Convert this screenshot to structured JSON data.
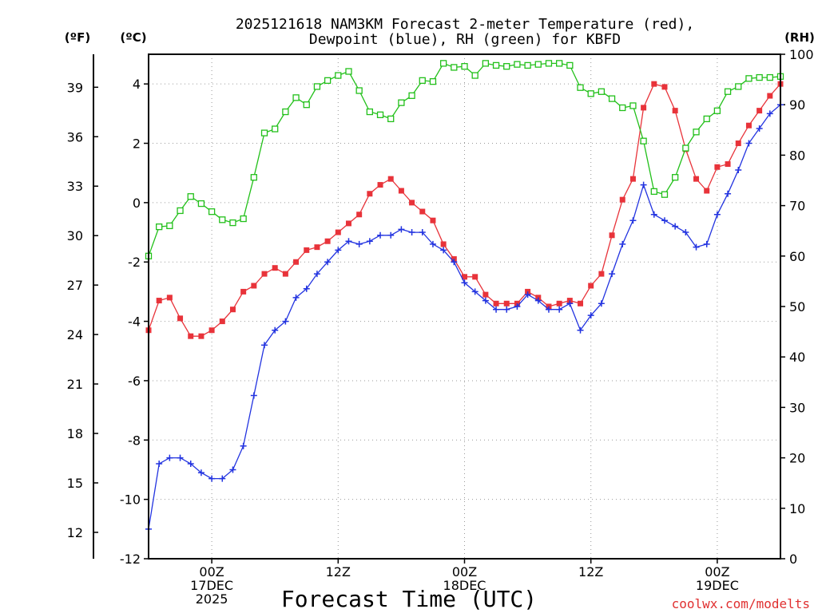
{
  "chart_data": {
    "type": "line",
    "title_line1": "2025121618 NAM3KM Forecast 2-meter Temperature (red),",
    "title_line2": "Dewpoint (blue), RH (green) for KBFD",
    "xlabel": "Forecast Time (UTC)",
    "credit": "coolwx.com/modelts",
    "axis_units": {
      "fahrenheit": "(ºF)",
      "celsius": "(ºC)",
      "rh": "(RH)"
    },
    "x_hours": {
      "start": -6,
      "end": 54,
      "step": 1
    },
    "xticks": [
      {
        "hour": 0,
        "lines": [
          "00Z",
          "17DEC",
          "2025"
        ]
      },
      {
        "hour": 12,
        "lines": [
          "12Z"
        ]
      },
      {
        "hour": 24,
        "lines": [
          "00Z",
          "18DEC"
        ]
      },
      {
        "hour": 36,
        "lines": [
          "12Z"
        ]
      },
      {
        "hour": 48,
        "lines": [
          "00Z",
          "19DEC"
        ]
      }
    ],
    "celsius_axis": {
      "ylim": [
        -12,
        5
      ],
      "ticks": [
        -12,
        -10,
        -8,
        -6,
        -4,
        -2,
        0,
        2,
        4
      ]
    },
    "fahrenheit_axis": {
      "ticks": [
        12,
        15,
        18,
        21,
        24,
        27,
        30,
        33,
        36,
        39
      ]
    },
    "rh_axis": {
      "ylim": [
        0,
        100
      ],
      "ticks": [
        0,
        10,
        20,
        30,
        40,
        50,
        60,
        70,
        80,
        90,
        100
      ]
    },
    "series": [
      {
        "name": "Temperature",
        "units": "C",
        "color": "#e8333a",
        "marker": "filled-square",
        "values": [
          -4.3,
          -3.3,
          -3.2,
          -3.9,
          -4.5,
          -4.5,
          -4.3,
          -4.0,
          -3.6,
          -3.0,
          -2.8,
          -2.4,
          -2.2,
          -2.4,
          -2.0,
          -1.6,
          -1.5,
          -1.3,
          -1.0,
          -0.7,
          -0.4,
          0.3,
          0.6,
          0.8,
          0.4,
          0.0,
          -0.3,
          -0.6,
          -1.4,
          -1.9,
          -2.5,
          -2.5,
          -3.1,
          -3.4,
          -3.4,
          -3.4,
          -3.0,
          -3.2,
          -3.5,
          -3.4,
          -3.3,
          -3.4,
          -2.8,
          -2.4,
          -1.1,
          0.1,
          0.8,
          3.2,
          4.0,
          3.9,
          3.1,
          1.8,
          0.8,
          0.4,
          1.2,
          1.3,
          2.0,
          2.6,
          3.1,
          3.6,
          4.0
        ]
      },
      {
        "name": "Dewpoint",
        "units": "C",
        "color": "#2233e0",
        "marker": "plus",
        "values": [
          -11.0,
          -8.8,
          -8.6,
          -8.6,
          -8.8,
          -9.1,
          -9.3,
          -9.3,
          -9.0,
          -8.2,
          -6.5,
          -4.8,
          -4.3,
          -4.0,
          -3.2,
          -2.9,
          -2.4,
          -2.0,
          -1.6,
          -1.3,
          -1.4,
          -1.3,
          -1.1,
          -1.1,
          -0.9,
          -1.0,
          -1.0,
          -1.4,
          -1.6,
          -2.0,
          -2.7,
          -3.0,
          -3.3,
          -3.6,
          -3.6,
          -3.5,
          -3.1,
          -3.3,
          -3.6,
          -3.6,
          -3.4,
          -4.3,
          -3.8,
          -3.4,
          -2.4,
          -1.4,
          -0.6,
          0.6,
          -0.4,
          -0.6,
          -0.8,
          -1.0,
          -1.5,
          -1.4,
          -0.4,
          0.3,
          1.1,
          2.0,
          2.5,
          3.0,
          3.3
        ]
      },
      {
        "name": "RH",
        "units": "%",
        "color": "#22c01a",
        "marker": "open-square",
        "values": [
          60.0,
          65.8,
          66.0,
          69.0,
          71.8,
          70.4,
          68.8,
          67.2,
          66.6,
          67.4,
          75.6,
          84.4,
          85.2,
          88.6,
          91.4,
          90.0,
          93.6,
          94.8,
          95.8,
          96.6,
          92.8,
          88.6,
          88.0,
          87.2,
          90.4,
          91.8,
          94.8,
          94.6,
          98.2,
          97.4,
          97.6,
          95.8,
          98.2,
          97.8,
          97.6,
          98.0,
          97.8,
          98.0,
          98.2,
          98.2,
          97.8,
          93.4,
          92.2,
          92.6,
          91.2,
          89.4,
          89.8,
          82.8,
          72.8,
          72.2,
          75.6,
          81.4,
          84.6,
          87.2,
          88.8,
          92.6,
          93.6,
          95.2,
          95.4,
          95.4,
          95.6
        ]
      }
    ]
  }
}
